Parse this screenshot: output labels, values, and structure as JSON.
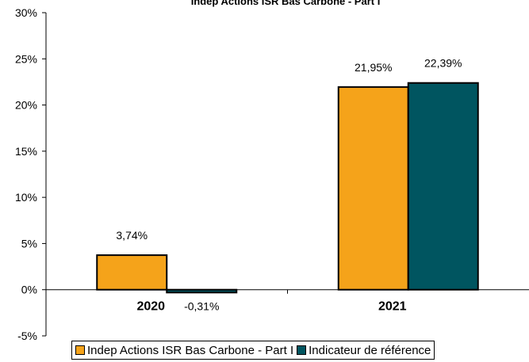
{
  "chart_data": {
    "type": "bar",
    "title": "Indep Actions ISR Bas Carbone - Part I",
    "categories": [
      "2020",
      "2021"
    ],
    "series": [
      {
        "name": "Indep Actions ISR Bas Carbone - Part I",
        "values": [
          3.74,
          21.95
        ],
        "labels": [
          "3,74%",
          "21,95%"
        ],
        "color": "#F5A31A"
      },
      {
        "name": "Indicateur de référence",
        "values": [
          -0.31,
          22.39
        ],
        "labels": [
          "-0,31%",
          "22,39%"
        ],
        "color": "#005560"
      }
    ],
    "ylim": [
      -5,
      30
    ],
    "yticks": [
      -5,
      0,
      5,
      10,
      15,
      20,
      25,
      30
    ],
    "ytick_labels": [
      "-5%",
      "0%",
      "5%",
      "10%",
      "15%",
      "20%",
      "25%",
      "30%"
    ],
    "legend_position": "bottom",
    "grid": false
  }
}
